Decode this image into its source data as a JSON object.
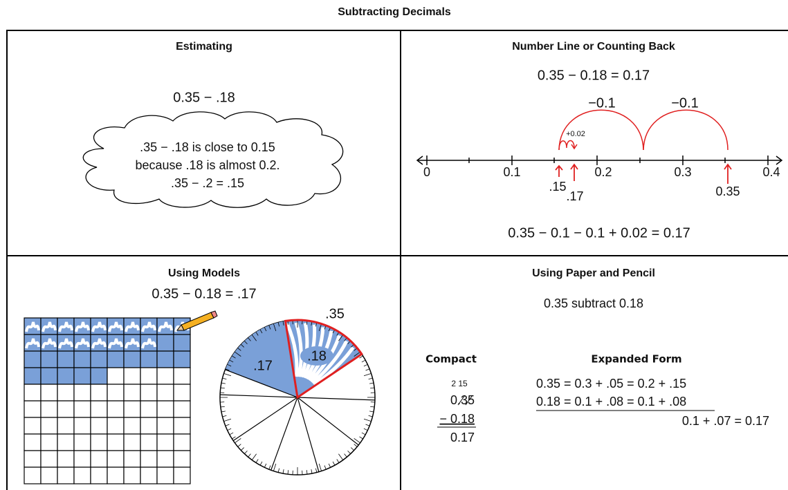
{
  "title": "Subtracting Decimals",
  "estimating": {
    "title": "Estimating",
    "expression": "0.35 − .18",
    "cloud": [
      ".35 − .18 is close to 0.15",
      "because .18 is almost 0.2.",
      ".35 − .2 = .15"
    ]
  },
  "number_line": {
    "title": "Number Line or Counting Back",
    "equation": "0.35 − 0.18 = 0.17",
    "jumps": [
      "−0.1",
      "−0.1",
      "+0.02"
    ],
    "ticks": [
      "0",
      "0.1",
      "0.2",
      "0.3",
      "0.4"
    ],
    "markers": [
      ".15",
      ".17",
      "0.35"
    ],
    "result": "0.35 − 0.1 − 0.1 + 0.02 = 0.17"
  },
  "models": {
    "title": "Using Models",
    "equation": "0.35 − 0.18 = .17",
    "labels": [
      ".35",
      ".17",
      ".18"
    ]
  },
  "paper": {
    "title": "Using Paper and Pencil",
    "subtitle": "0.35 subtract 0.18",
    "compact": {
      "heading": "Compact",
      "regroup": "2 15",
      "top": "0.35",
      "subtract": "− 0.18",
      "result": "0.17"
    },
    "expanded": {
      "heading": "Expanded Form",
      "lines": [
        "0.35 = 0.3 + .05 = 0.2 + .15",
        "0.18 = 0.1 + .08 = 0.1 + .08",
        "0.1 + .07 = 0.17"
      ]
    }
  }
}
